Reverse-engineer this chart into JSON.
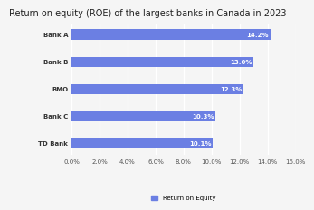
{
  "title": "Return on equity (ROE) of the largest banks in Canada in 2023",
  "banks": [
    "TD Bank",
    "Bank C",
    "BMO",
    "Bank B",
    "Bank A"
  ],
  "values": [
    10.1,
    10.3,
    12.3,
    13.0,
    14.2
  ],
  "labels": [
    "10.1%",
    "10.3%",
    "12.3%",
    "13.0%",
    "14.2%"
  ],
  "bar_color": "#6b7fe3",
  "xlim": [
    0,
    16
  ],
  "xticks": [
    0,
    2,
    4,
    6,
    8,
    10,
    12,
    14,
    16
  ],
  "xtick_labels": [
    "0.0%",
    "2.0%",
    "4.0%",
    "6.0%",
    "8.0%",
    "10.0%",
    "12.0%",
    "14.0%",
    "16.0%"
  ],
  "legend_label": "Return on Equity",
  "title_fontsize": 7,
  "label_fontsize": 5,
  "tick_fontsize": 5,
  "background_color": "#f5f5f5",
  "plot_bg_color": "#f5f5f5",
  "grid_color": "#ffffff"
}
